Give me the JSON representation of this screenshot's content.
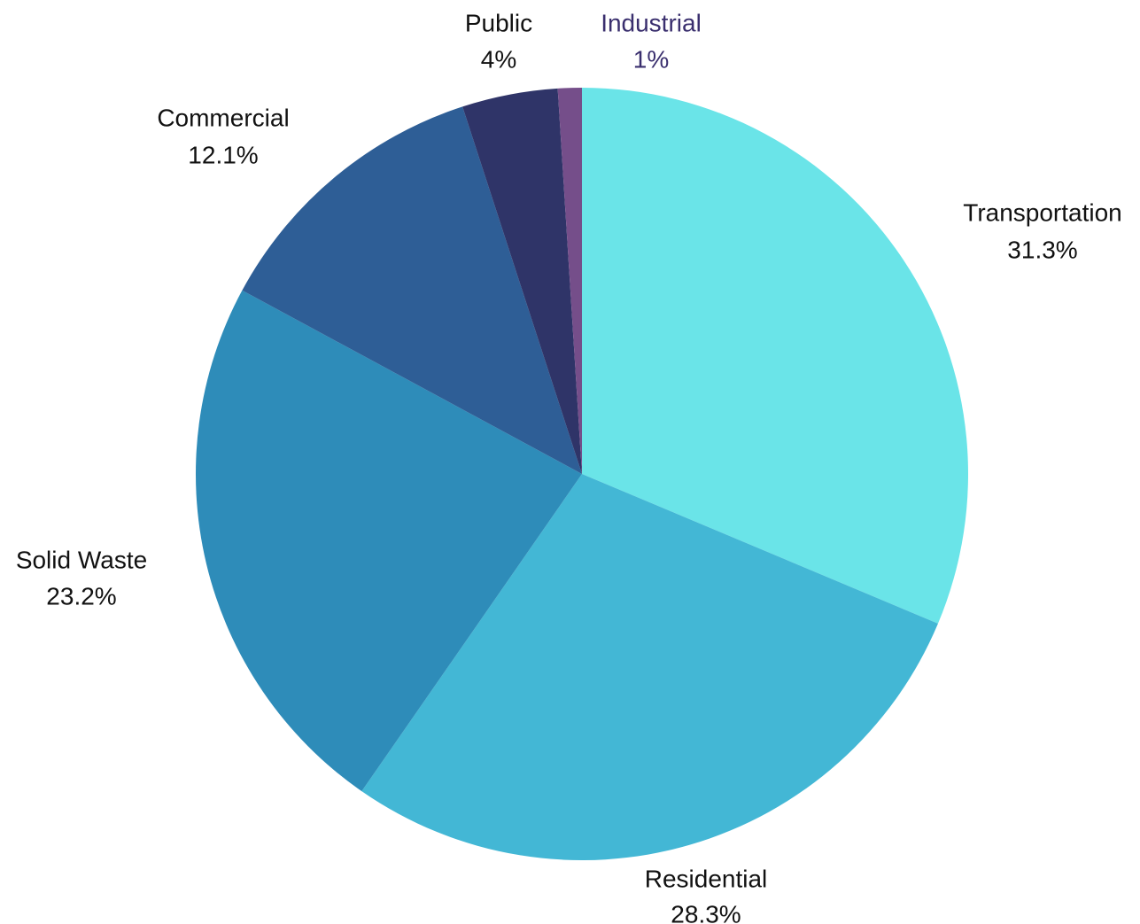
{
  "chart_data": {
    "type": "pie",
    "title": "",
    "slices": [
      {
        "label": "Transportation",
        "value": 31.3,
        "display": "31.3%",
        "color": "#6AE4E8"
      },
      {
        "label": "Residential",
        "value": 28.3,
        "display": "28.3%",
        "color": "#43B7D5"
      },
      {
        "label": "Solid Waste",
        "value": 23.2,
        "display": "23.2%",
        "color": "#2E8CB9"
      },
      {
        "label": "Commercial",
        "value": 12.1,
        "display": "12.1%",
        "color": "#2E5E96"
      },
      {
        "label": "Public",
        "value": 4,
        "display": "4%",
        "color": "#2F3468"
      },
      {
        "label": "Industrial",
        "value": 1,
        "display": "1%",
        "color": "#754E8A"
      }
    ],
    "label_colors": {
      "default": "#111111",
      "Industrial": "#3A2F6E"
    },
    "start_angle": "12 o'clock",
    "direction": "clockwise",
    "legend": "none",
    "data_labels": "outside"
  }
}
